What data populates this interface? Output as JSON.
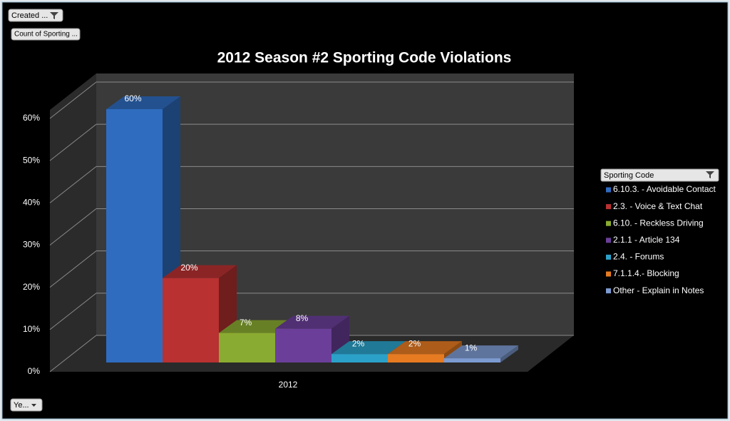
{
  "chart_data": {
    "type": "bar",
    "title": "2012 Season #2 Sporting Code Violations",
    "categories": [
      "2012"
    ],
    "legend_title": "Sporting Code",
    "series": [
      {
        "name": "6.10.3. - Avoidable Contact",
        "color": "#2f6cc0",
        "values": [
          60
        ],
        "value_labels": [
          "60%"
        ]
      },
      {
        "name": "2.3. - Voice & Text Chat",
        "color": "#b93131",
        "values": [
          20
        ],
        "value_labels": [
          "20%"
        ]
      },
      {
        "name": "6.10. - Reckless Driving",
        "color": "#8aab31",
        "values": [
          7
        ],
        "value_labels": [
          "7%"
        ]
      },
      {
        "name": "2.1.1 - Article 134",
        "color": "#6b3f99",
        "values": [
          8
        ],
        "value_labels": [
          "8%"
        ]
      },
      {
        "name": "2.4. - Forums",
        "color": "#2ba1c9",
        "values": [
          2
        ],
        "value_labels": [
          "2%"
        ]
      },
      {
        "name": "7.1.1.4.- Blocking",
        "color": "#e67b21",
        "values": [
          2
        ],
        "value_labels": [
          "2%"
        ]
      },
      {
        "name": "Other - Explain in Notes",
        "color": "#7d9bd1",
        "values": [
          1
        ],
        "value_labels": [
          "1%"
        ]
      }
    ],
    "ylim": [
      0,
      60
    ],
    "yticks": [
      {
        "value": 0,
        "label": "0%"
      },
      {
        "value": 10,
        "label": "10%"
      },
      {
        "value": 20,
        "label": "20%"
      },
      {
        "value": 30,
        "label": "30%"
      },
      {
        "value": 40,
        "label": "40%"
      },
      {
        "value": 50,
        "label": "50%"
      },
      {
        "value": 60,
        "label": "60%"
      }
    ],
    "grid": true
  },
  "pivot_buttons": {
    "report_filter": "Created ...",
    "values": "Count of Sporting ...",
    "axis": "Ye..."
  }
}
